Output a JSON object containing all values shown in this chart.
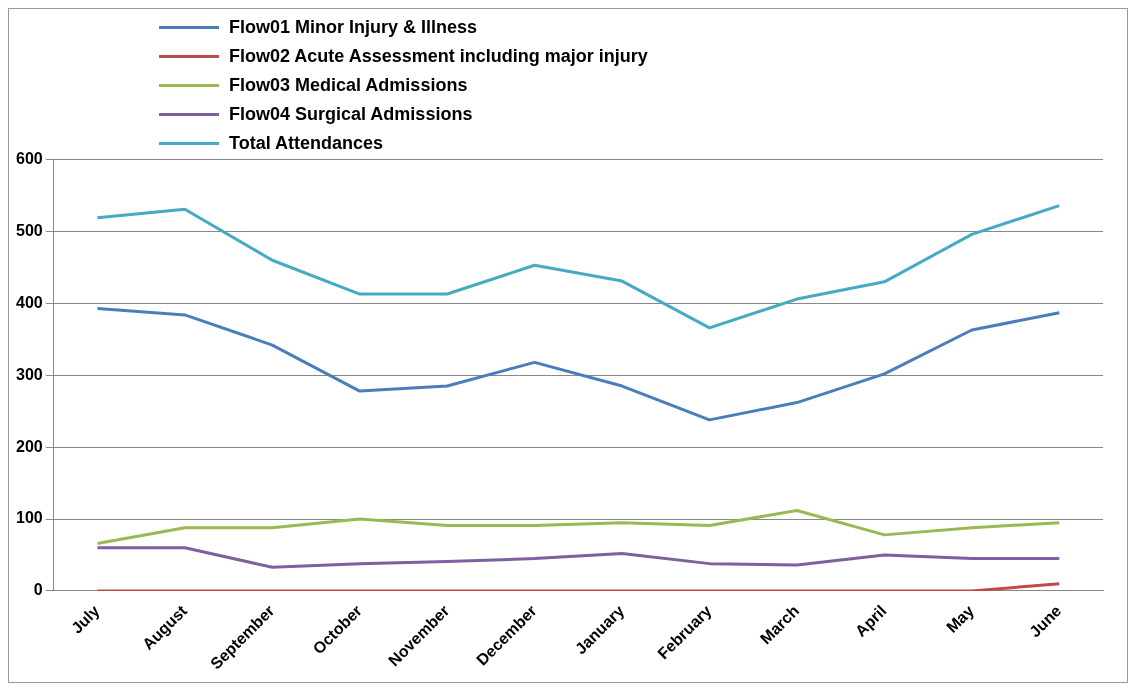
{
  "chart_data": {
    "type": "line",
    "categories": [
      "July",
      "August",
      "September",
      "October",
      "November",
      "December",
      "January",
      "February",
      "March",
      "April",
      "May",
      "June"
    ],
    "series": [
      {
        "name": "Flow01 Minor Injury & Illness",
        "color": "#4a7ebb",
        "values": [
          393,
          384,
          342,
          278,
          285,
          318,
          285,
          238,
          262,
          302,
          363,
          387
        ]
      },
      {
        "name": "Flow02 Acute Assessment including major injury",
        "color": "#be4b48",
        "values": [
          0,
          0,
          0,
          0,
          0,
          0,
          0,
          0,
          0,
          0,
          0,
          10
        ]
      },
      {
        "name": "Flow03 Medical Admissions",
        "color": "#98b954",
        "values": [
          66,
          88,
          88,
          100,
          91,
          91,
          95,
          91,
          112,
          78,
          88,
          95
        ]
      },
      {
        "name": "Flow04 Surgical Admissions",
        "color": "#7d60a0",
        "values": [
          60,
          60,
          33,
          38,
          41,
          45,
          52,
          38,
          36,
          50,
          45,
          45
        ]
      },
      {
        "name": "Total Attendances",
        "color": "#46aac5",
        "values": [
          519,
          531,
          460,
          413,
          413,
          453,
          431,
          366,
          406,
          430,
          496,
          536
        ]
      }
    ],
    "ylim": [
      0,
      600
    ],
    "yticks": [
      0,
      100,
      200,
      300,
      400,
      500,
      600
    ],
    "grid": "y",
    "legend": "top left",
    "marker": "none",
    "line_style": "solid"
  }
}
